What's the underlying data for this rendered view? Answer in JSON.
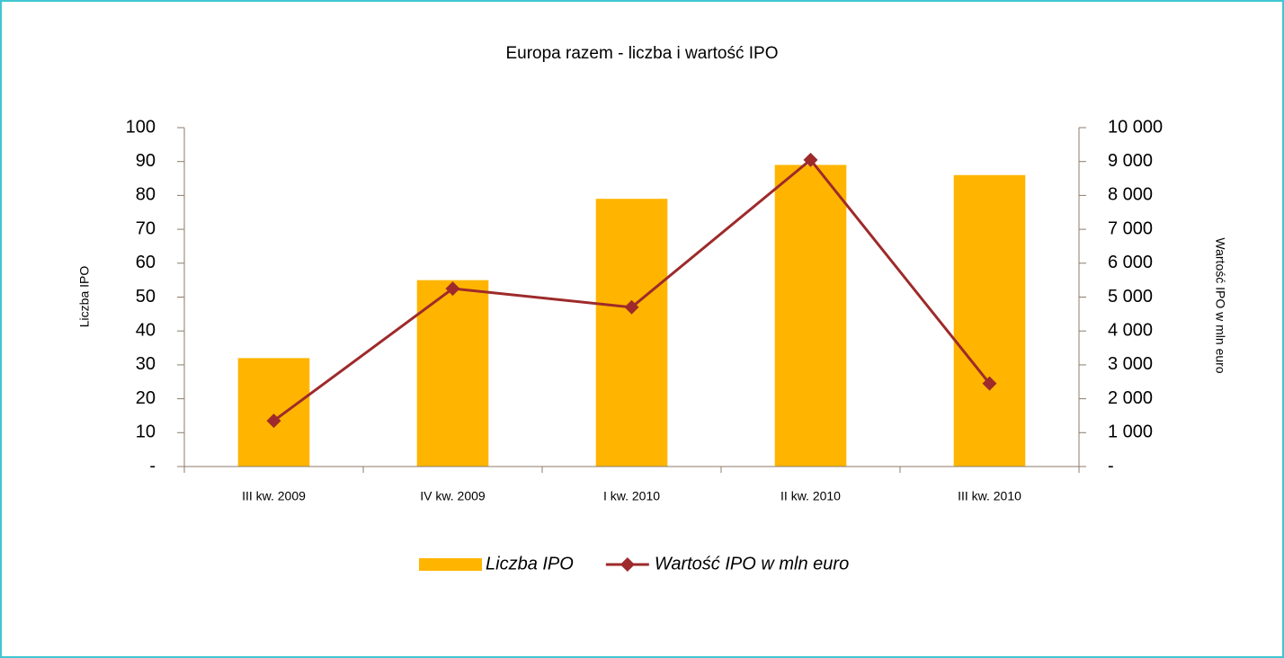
{
  "chart_data": {
    "type": "bar",
    "title": "Europa razem - liczba i wartość IPO",
    "y_label": "Liczba IPO",
    "y2_label": "Wartość IPO w mln euro",
    "categories": [
      "III kw. 2009",
      "IV kw. 2009",
      "I kw. 2010",
      "II kw. 2010",
      "III kw. 2010"
    ],
    "series": [
      {
        "name": "Liczba IPO",
        "color": "#ffb500",
        "type": "bar",
        "values": [
          32,
          55,
          79,
          89,
          86
        ]
      },
      {
        "name": "Wartość IPO w mln euro",
        "color": "#9e2a2b",
        "type": "line",
        "axis": "y2",
        "values": [
          1350,
          5250,
          4700,
          9050,
          2450
        ]
      }
    ],
    "ylim": [
      0,
      100
    ],
    "yticks": [
      {
        "value": 0,
        "label": "-"
      },
      10,
      20,
      30,
      40,
      50,
      60,
      70,
      80,
      90,
      100
    ],
    "y2lim": [
      0,
      10000
    ],
    "y2ticks": [
      {
        "value": 0,
        "label": "-"
      },
      {
        "value": 1000,
        "label": "1 000"
      },
      {
        "value": 2000,
        "label": "2 000"
      },
      {
        "value": 3000,
        "label": "3 000"
      },
      {
        "value": 4000,
        "label": "4 000"
      },
      {
        "value": 5000,
        "label": "5 000"
      },
      {
        "value": 6000,
        "label": "6 000"
      },
      {
        "value": 7000,
        "label": "7 000"
      },
      {
        "value": 8000,
        "label": "8 000"
      },
      {
        "value": 9000,
        "label": "9 000"
      },
      {
        "value": 10000,
        "label": "10 000"
      }
    ],
    "legend": "bottom"
  }
}
